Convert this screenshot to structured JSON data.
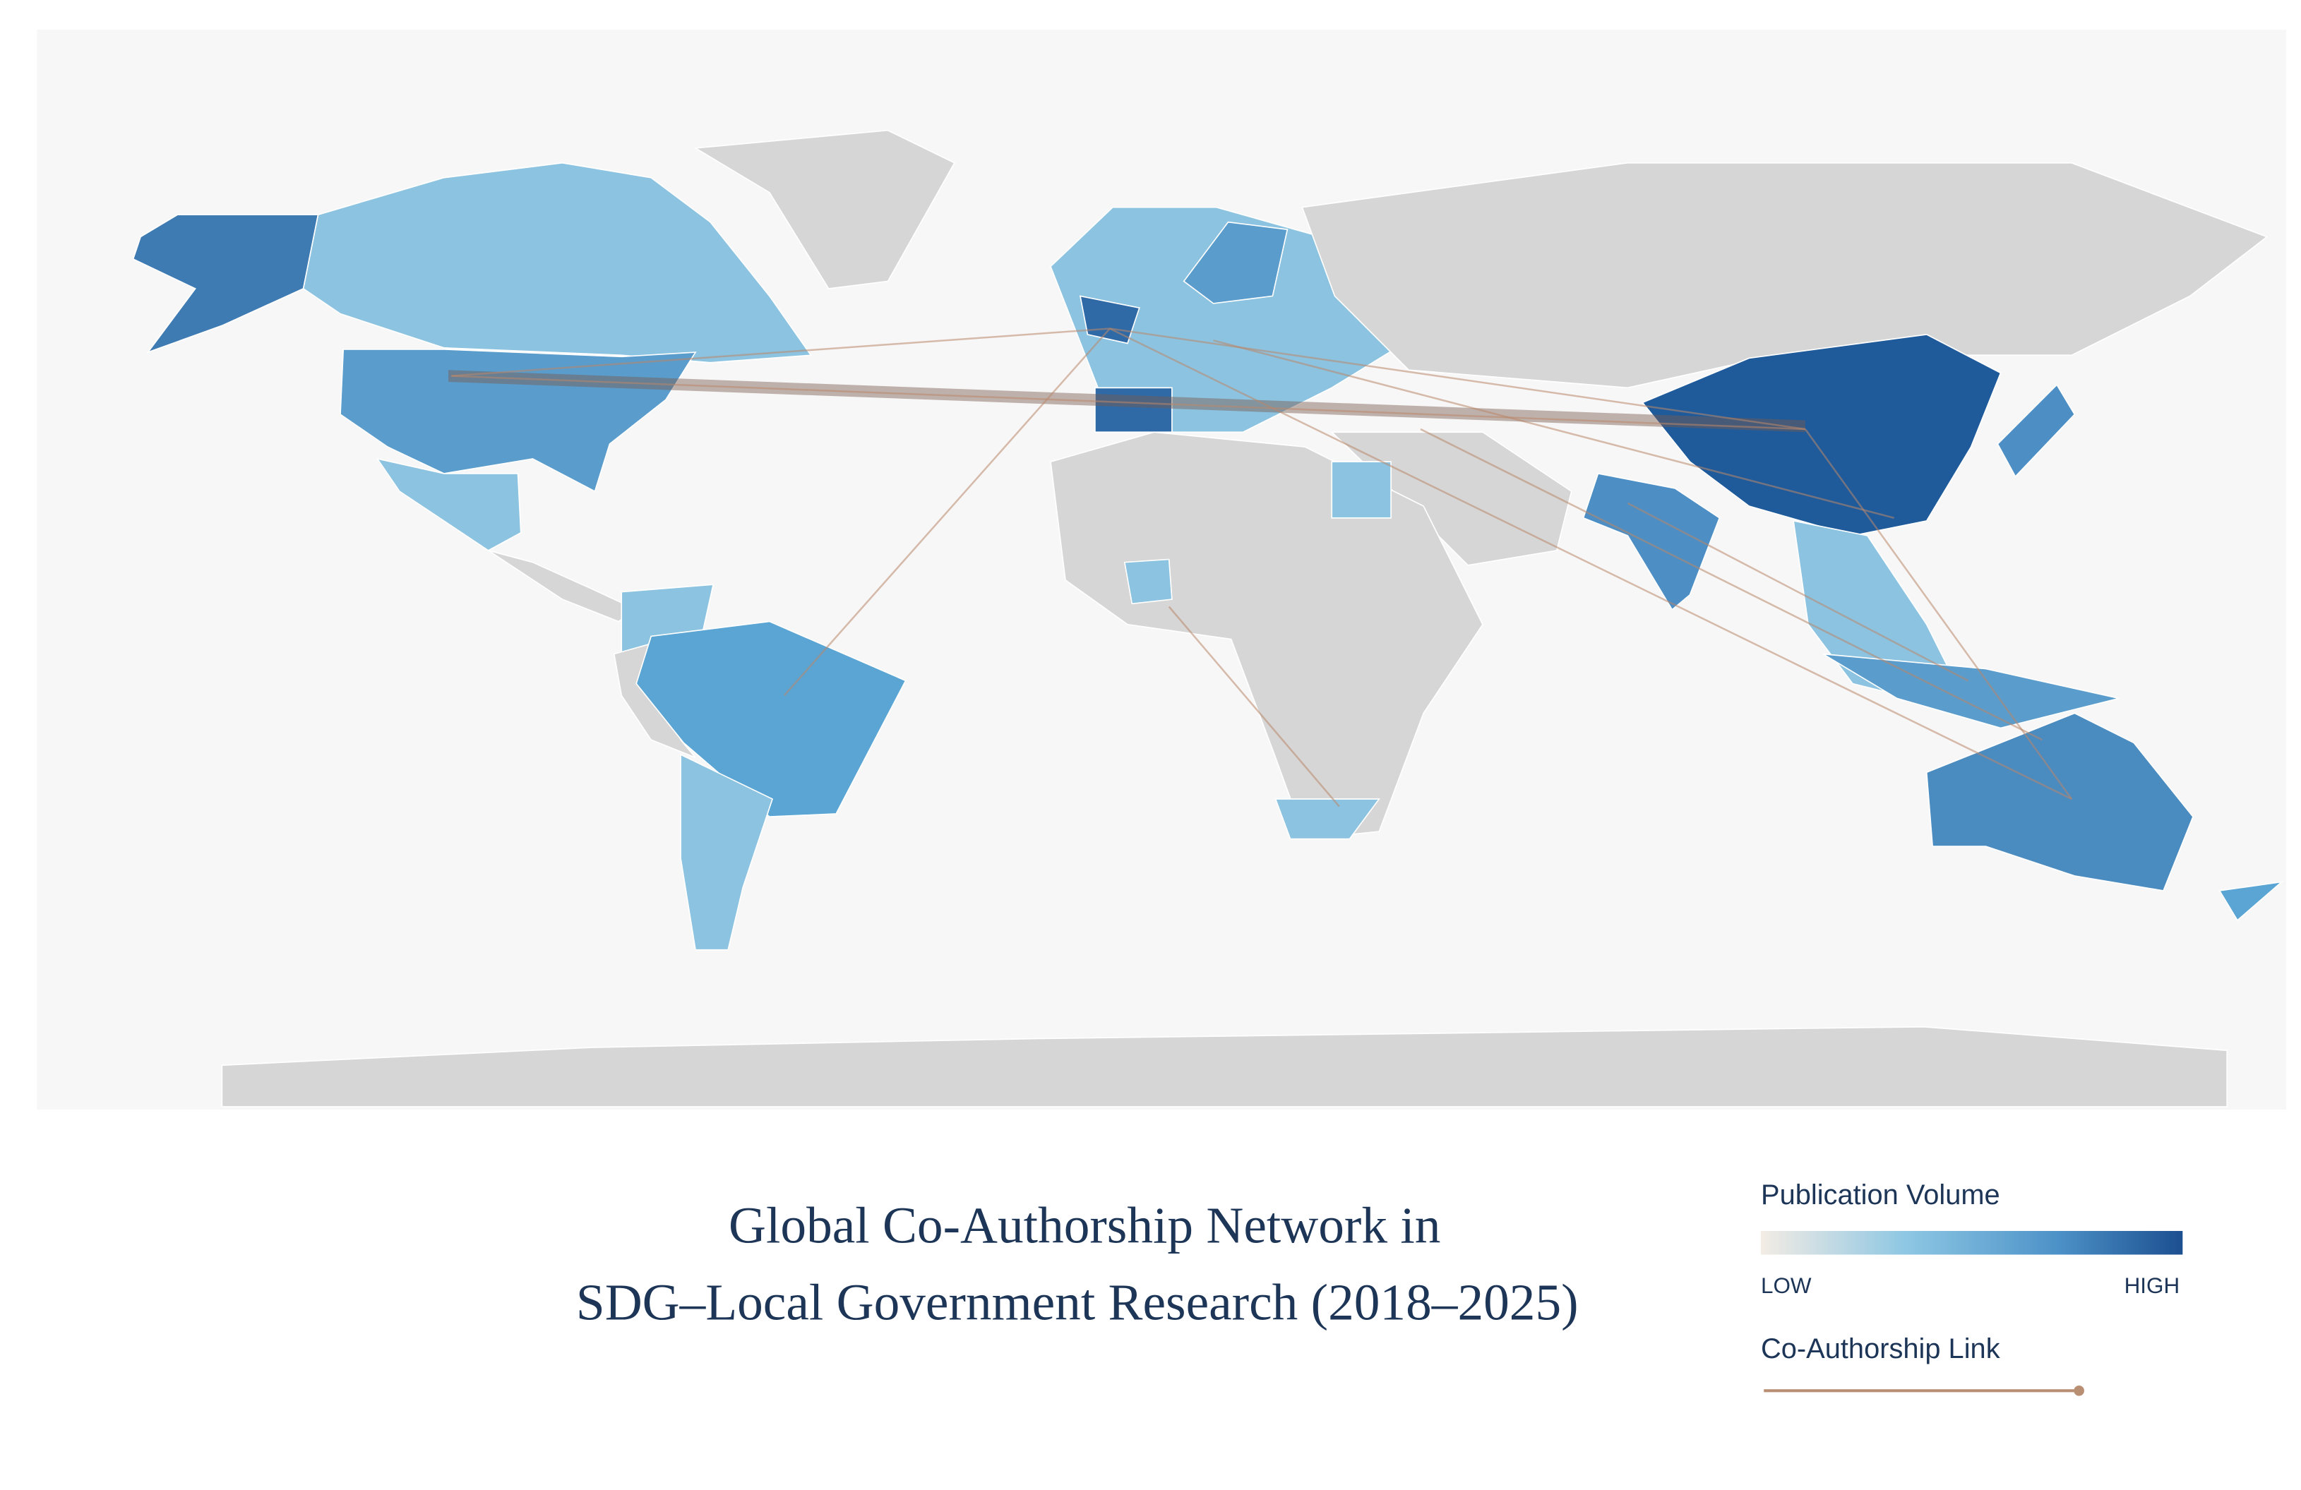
{
  "map": {
    "title": [
      "Global Co-Authorship Network in",
      "SDG–Local Government Research (2018–2025)"
    ],
    "legend": {
      "title": "Publication Volume",
      "low": "LOW",
      "high": "HIGH",
      "link_label": "Co-Authorship Link"
    }
  }
}
